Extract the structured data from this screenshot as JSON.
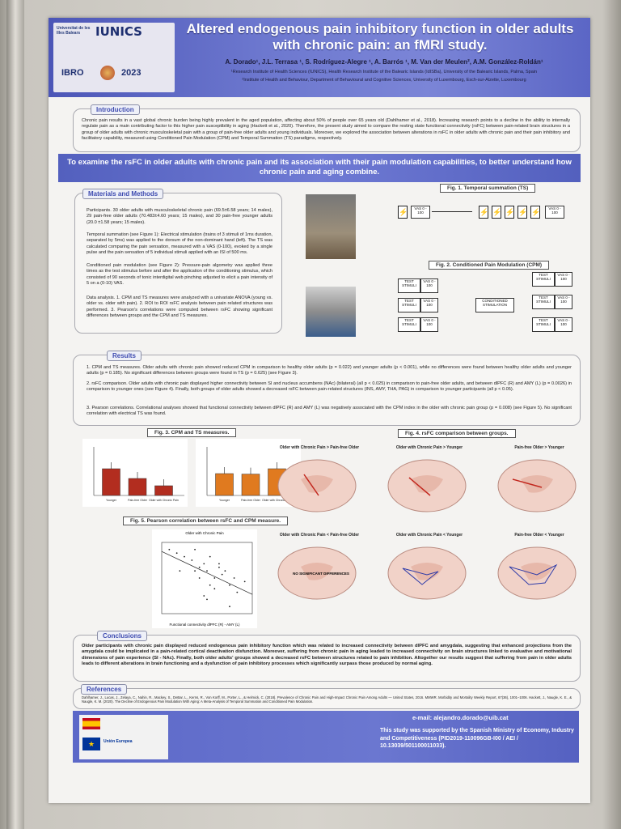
{
  "poster": {
    "title": "Altered endogenous pain inhibitory function in older adults with chronic pain: an fMRI study.",
    "authors": "A. Dorado¹, J.L. Terrasa ¹, S. Rodríguez-Alegre ¹, A. Barrós ¹, M. Van der Meulen², A.M. González-Roldán¹",
    "affiliation1": "¹Research Institute of Health Sciences (IUNICS), Health Research Institute of the Balearic Islands (IdISBa), University of the Balearic Islands, Palma, Spain",
    "affiliation2": "²Institute of Health and Behaviour, Department of Behavioural and Cognitive Sciences, University of Luxembourg, Esch-sur-Alzette, Luxembourg",
    "logo_univ": "Universitat de les Illes Balears",
    "logo_iunics": "IUNICS",
    "logo_ibro": "IBRO",
    "logo_year": "2023",
    "banner": "To examine the rsFC in older adults with chronic pain and its association with their pain modulation capabilities, to better understand how chronic pain and aging combine."
  },
  "introduction": {
    "label": "Introduction",
    "text": "Chronic pain results in a vast global chronic burden being highly prevalent in the aged population, affecting about 50% of people over 65 years old (Dahlhamer et al., 2018). Increasing research points to a decline in the ability to internally regulate pain as a main contributing factor to this higher pain susceptibility in aging (Hackett et al., 2020). Therefore, the present study aimed to compare the resting state functional connectivity (rsFC) between pain-related brain structures in a group of older adults with chronic musculoskeletal pain with a group of pain-free older adults and young individuals. Moreover, we explored the association between alterations in rsFC in older adults with chronic pain and their pain inhibitory and facilitatory capability, measured using Conditioned Pain Modulation (CPM) and Temporal Summation (TS) paradigms, respectively."
  },
  "methods": {
    "label": "Materials and Methods",
    "participants": "Participants. 30 older adults with musculoskeletal chronic pain (69.5±6.58 years; 14 males), 29 pain-free older adults (70.483±4.60 years; 15 males), and 30 pain-free younger adults (20.0 ±1.58 years; 15 males).",
    "ts": "Temporal summation (see Figure 1): Electrical stimulation (trains of 3 stimuli of 1ms duration, separated by 5ms) was applied to the dorsum of the non-dominant hand (left). The TS was calculated comparing the pain sensation, measured with a VAS (0-100), evoked by a single pulse and the pain sensation of 5 individual stimuli applied with an ISI of 500 ms.",
    "cpm": "Conditioned pain modulation (see Figure 2): Pressure-pain algometry was applied three times as the test stimulus before and after the application of the conditioning stimulus, which consisted of 90 seconds of tonic interdigital web pinching adjusted to elicit a pain intensity of 5 on a (0-10) VAS.",
    "analysis": "Data analysis. 1. CPM and TS measures were analyzed with a univariate ANOVA (young vs. older vs. older with pain). 2. ROI to ROI rsFC analysis between pain related structures was performed. 3. Pearson's correlations were computed between rsFC showing significant differences between groups and the CPM and TS measures."
  },
  "fig1": {
    "label": "Fig. 1. Temporal summation (TS)",
    "vas": "VAS 0 - 100"
  },
  "fig2": {
    "label": "Fig. 2. Conditioned Pain Modulation (CPM)",
    "test": "TEST STIMULI",
    "vas": "VAS 0 - 100",
    "conditioning": "CONDITIONED STIMULATION"
  },
  "results": {
    "label": "Results",
    "r1": "1.   CPM and TS measures. Older adults with chronic pain showed reduced CPM in comparison to healthy older adults (p = 0.022) and younger adults (p < 0.001), while no differences were found between healthy older adults and younger adults (p = 0.185). No significant differences between groups were found in TS (p = 0.625) (see Figure 3).",
    "r2": "2.   rsFC comparison. Older adults with chronic pain displayed higher connectivity between SI and nucleus accumbens (NAc) (bilateral) (all p < 0.025) in comparison to pain-free older adults, and between dlPFC (R) and AMY (L) (p = 0.0026) in comparison to younger ones (see Figure 4). Finally, both groups of older adults showed a decreased rsFC between pain-related structures (INS, AMY, THA, PAG) in comparison to younger participants (all p < 0.05).",
    "r3": "3.   Pearson correlations. Correlational analyses showed that functional connectivity between dlPFC (R) and AMY (L) was negatively associated with the CPM index in the older with chronic pain group (p = 0.008) (see Figure 5). No significant correlation with electrical TS was found."
  },
  "fig3": {
    "label": "Fig. 3. CPM and TS measures."
  },
  "fig4": {
    "label": "Fig. 4. rsFC comparison between groups.",
    "titles": [
      "Older with Chronic Pain > Pain-free Older",
      "Older with Chronic Pain > Younger",
      "Pain-free Older > Younger",
      "Older with Chronic Pain < Pain-free Older",
      "Older with Chronic Pain < Younger",
      "Pain-free Older < Younger"
    ],
    "no_diff": "NO SIGNIFICANT DIFFERENCES"
  },
  "fig5": {
    "label": "Fig. 5. Pearson correlation between rsFC and CPM measure.",
    "plot_title": "Older with Chronic Pain",
    "xlabel": "Functional connectivity dlPFC (R) - AMY (L)",
    "ylabel": "Mean CPM response"
  },
  "conclusions": {
    "label": "Conclusions",
    "text": "Older participants with chronic pain displayed reduced endogenous pain inhibitory function which was related to increased connectivity between dlPFC and amygdala, suggesting that enhanced projections from the amygdala could be implicated in a pain-related cortical deactivation disfunction. Moreover, suffering from chronic pain in aging leaded to increased connectivity on brain structures linked to evaluative and motivational dimensions of pain experience (SI - NAc). Finally, both older adults' groups showed a decreased rsFC between structures related to pain inhibition. Altogether our results suggest that suffering from pain in older adults leads to different alterations in brain functioning and a dysfunction of pain inhibitory processes which significantly surpass those produced by normal aging."
  },
  "references": {
    "label": "References",
    "text": "Dahlhamer, J., Lucas, J., Zelaya, C., Nahin, R., Mackey, S., DeBar, L., Kerns, R., Von Korff, M., Porter, L., & Helmick, C. (2018). Prevalence of Chronic Pain and High-Impact Chronic Pain Among Adults — United States, 2016. MMWR. Morbidity and Mortality Weekly Report, 67(36), 1001–1006. Hackett, J., Naugle, K. E., & Naugle, K. M. (2020). The Decline of Endogenous Pain Modulation With Aging: A Meta-Analysis of Temporal Summation and Conditioned Pain Modulation."
  },
  "footer": {
    "email": "e-mail: alejandro.dorado@uib.cat",
    "support": "This study was supported by the Spanish Ministry of Economy, Industry and Competitiveness (PID2019-110096GB-I00 / AEI / 10.13039/501100011033).",
    "eu": "Unión Europea"
  },
  "chart_data": [
    {
      "type": "bar",
      "categories": [
        "Younger",
        "Pain-free Older",
        "Older with Chronic Pain"
      ],
      "values": [
        0.55,
        0.35,
        0.2
      ],
      "colors": [
        "#b22d1f",
        "#b22d1f",
        "#b22d1f"
      ]
    },
    {
      "type": "bar",
      "categories": [
        "Younger",
        "Pain-free Older",
        "Older with Chronic Pain"
      ],
      "values": [
        0.45,
        0.44,
        0.55
      ],
      "colors": [
        "#e07a1f",
        "#e07a1f",
        "#e07a1f"
      ]
    },
    {
      "type": "scatter",
      "x": [
        -0.15,
        -0.1,
        -0.05,
        0.0,
        0.02,
        0.05,
        0.08,
        0.1,
        0.12,
        0.15,
        0.18,
        0.2,
        0.22,
        0.25,
        0.28,
        0.3,
        0.05,
        0.12,
        -0.08,
        0.18,
        0.02,
        0.1,
        0.15,
        0.25,
        0.35,
        0.08
      ],
      "y": [
        0.6,
        0.55,
        0.5,
        0.45,
        0.6,
        0.35,
        0.4,
        0.3,
        0.5,
        0.2,
        0.35,
        0.25,
        0.3,
        0.1,
        0.2,
        0.0,
        0.2,
        0.1,
        0.3,
        0.4,
        0.3,
        -0.1,
        0.05,
        -0.2,
        0.15,
        -0.05
      ],
      "fit": true
    }
  ]
}
